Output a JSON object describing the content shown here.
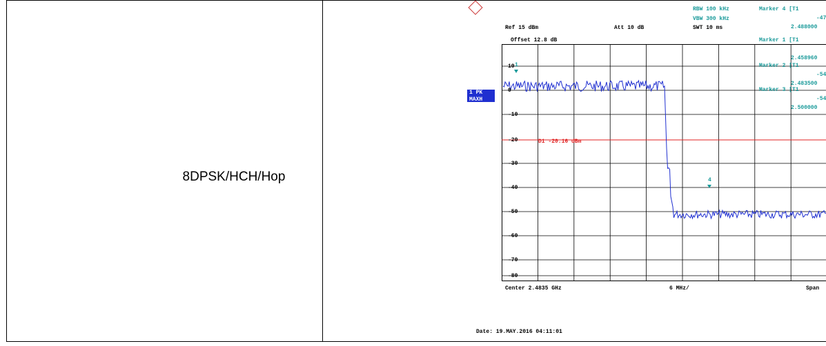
{
  "table": {
    "label": "8DPSK/HCH/Hop"
  },
  "analyzer": {
    "ref": "Ref  15 dBm",
    "att": "Att  10 dB",
    "rbw": "RBW 100 kHz",
    "vbw": "VBW 300 kHz",
    "swt": "SWT 10 ms",
    "offset": "Offset  12.8 dB",
    "trace": "1 PK",
    "mode": "MAXH",
    "line": "D1  -20.16 dBm",
    "markers": [
      {
        "title": "Marker 4 [T1",
        "level": "-47",
        "freq": "2.488000"
      },
      {
        "title": "Marker 1 [T1",
        "level": "",
        "freq": "2.458960"
      },
      {
        "title": "Marker 2 [T1",
        "level": "-54",
        "freq": "2.483500"
      },
      {
        "title": "Marker 3 [T1",
        "level": "-54",
        "freq": "2.500000"
      }
    ],
    "marker_tags": [
      "1",
      "4"
    ],
    "levels": [
      "10",
      "0",
      "-10",
      "-20",
      "-30",
      "-40",
      "-50",
      "-60",
      "-70",
      "-80"
    ],
    "center": "Center  2.4835 GHz",
    "div": "6 MHz/",
    "span": "Span",
    "date": "Date: 19.MAY.2016  04:11:01"
  }
}
